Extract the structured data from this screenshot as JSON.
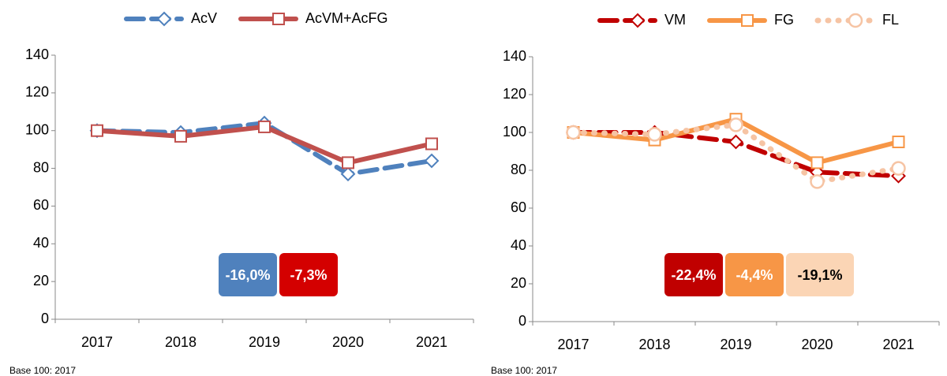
{
  "chart_data": [
    {
      "type": "line",
      "categories": [
        "2017",
        "2018",
        "2019",
        "2020",
        "2021"
      ],
      "series": [
        {
          "name": "AcV",
          "color": "#4f81bd",
          "style": "dashed",
          "marker": "diamond",
          "values": [
            100,
            99,
            104,
            77,
            84
          ]
        },
        {
          "name": "AcVM+AcFG",
          "color": "#c0504d",
          "style": "solid",
          "marker": "square",
          "values": [
            100,
            97,
            102,
            83,
            93
          ]
        }
      ],
      "ylim": [
        0,
        140
      ],
      "yticks": [
        0,
        20,
        40,
        60,
        80,
        100,
        120,
        140
      ],
      "legend": "top",
      "annotations": [
        {
          "text": "-16,0%",
          "color": "#4f81bd",
          "text_color": "#ffffff"
        },
        {
          "text": "-7,3%",
          "color": "#d40000",
          "text_color": "#ffffff"
        }
      ],
      "footnote": "Base 100: 2017"
    },
    {
      "type": "line",
      "categories": [
        "2017",
        "2018",
        "2019",
        "2020",
        "2021"
      ],
      "series": [
        {
          "name": "VM",
          "color": "#c00000",
          "style": "dashed",
          "marker": "diamond",
          "values": [
            100,
            100,
            95,
            79,
            77
          ]
        },
        {
          "name": "FG",
          "color": "#f79646",
          "style": "solid",
          "marker": "square",
          "values": [
            100,
            96,
            107,
            84,
            95
          ]
        },
        {
          "name": "FL",
          "color": "#f6c4a4",
          "style": "dotted",
          "marker": "circle",
          "values": [
            100,
            99,
            104,
            74,
            81
          ]
        }
      ],
      "ylim": [
        0,
        140
      ],
      "yticks": [
        0,
        20,
        40,
        60,
        80,
        100,
        120,
        140
      ],
      "legend": "top",
      "annotations": [
        {
          "text": "-22,4%",
          "color": "#c00000",
          "text_color": "#ffffff"
        },
        {
          "text": "-4,4%",
          "color": "#f79646",
          "text_color": "#ffffff"
        },
        {
          "text": "-19,1%",
          "color": "#fbd5b5",
          "text_color": "#000000"
        }
      ],
      "footnote": "Base 100: 2017"
    }
  ]
}
